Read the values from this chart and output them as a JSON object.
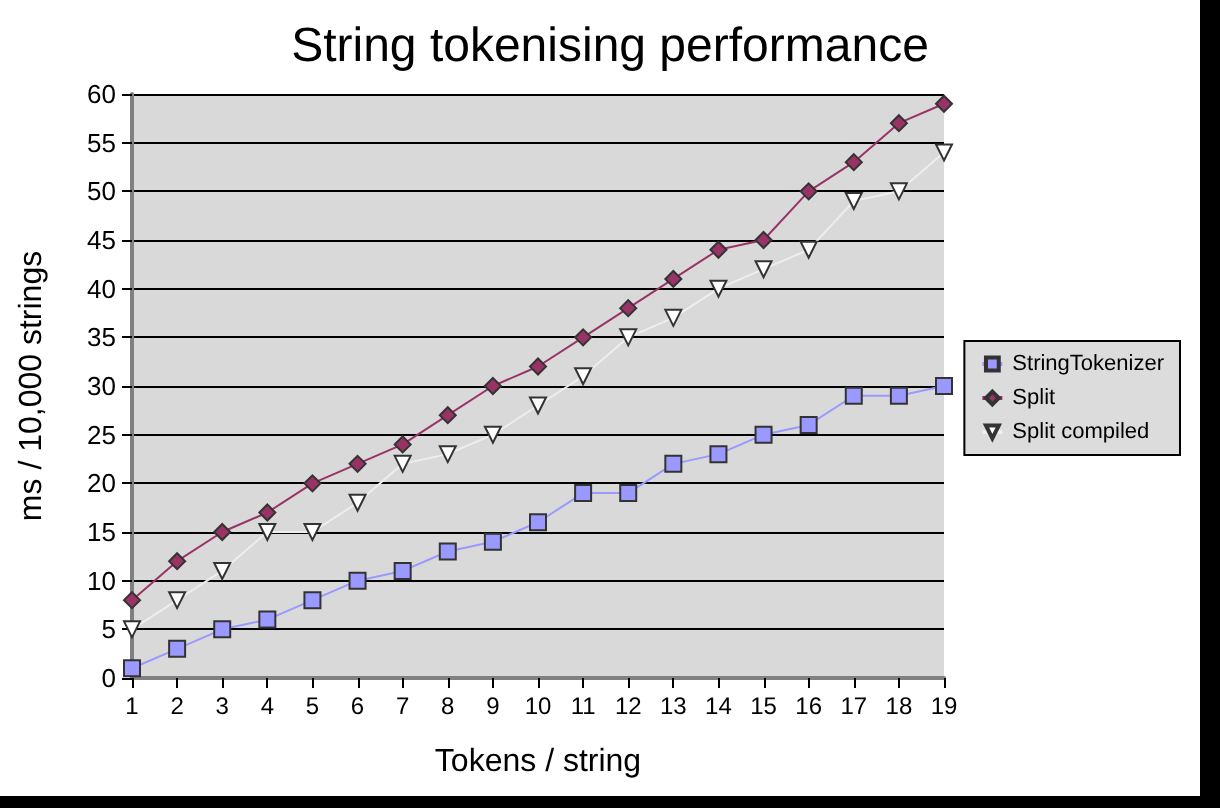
{
  "chart_data": {
    "type": "line",
    "title": "String tokenising performance",
    "xlabel": "Tokens / string",
    "ylabel": "ms / 10,000 strings",
    "x": [
      1,
      2,
      3,
      4,
      5,
      6,
      7,
      8,
      9,
      10,
      11,
      12,
      13,
      14,
      15,
      16,
      17,
      18,
      19
    ],
    "xlim": [
      1,
      19
    ],
    "xticks": [
      1,
      2,
      3,
      4,
      5,
      6,
      7,
      8,
      9,
      10,
      11,
      12,
      13,
      14,
      15,
      16,
      17,
      18,
      19
    ],
    "series": [
      {
        "name": "StringTokenizer",
        "color": "#9999ff",
        "marker": "square",
        "values": [
          1,
          3,
          5,
          6,
          8,
          10,
          11,
          13,
          14,
          16,
          19,
          19,
          22,
          23,
          25,
          26,
          29,
          29,
          30
        ]
      },
      {
        "name": "Split",
        "color": "#993366",
        "marker": "diamond",
        "values": [
          8,
          12,
          15,
          17,
          20,
          22,
          24,
          27,
          30,
          32,
          35,
          38,
          41,
          44,
          45,
          50,
          53,
          57,
          59
        ]
      },
      {
        "name": "Split compiled",
        "color": "#ffffff",
        "marker": "triangle",
        "values": [
          5,
          8,
          11,
          15,
          15,
          18,
          22,
          23,
          25,
          28,
          31,
          35,
          37,
          40,
          42,
          44,
          49,
          50,
          54
        ]
      }
    ],
    "ylim": [
      0,
      60
    ],
    "yticks": [
      0,
      5,
      10,
      15,
      20,
      25,
      30,
      35,
      40,
      45,
      50,
      55,
      60
    ],
    "grid": "y",
    "legend": "right"
  }
}
